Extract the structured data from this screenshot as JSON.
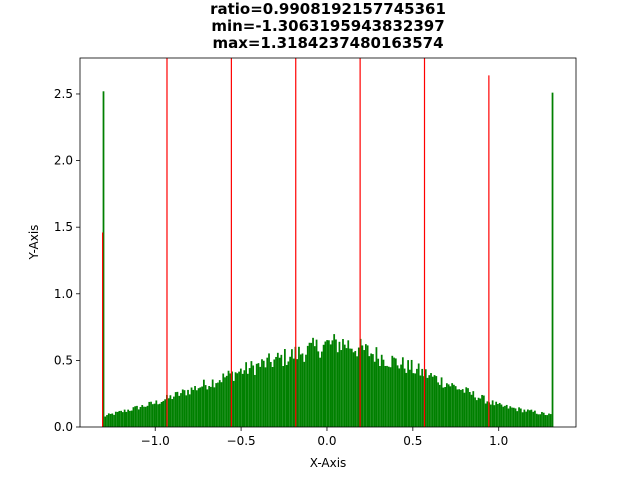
{
  "chart_data": {
    "type": "bar",
    "title": [
      "ratio=0.9908192157745361",
      "min=-1.3063195943832397",
      "max=1.3184237480163574"
    ],
    "xlabel": "X-Axis",
    "ylabel": "Y-Axis",
    "xlim": [
      -1.438,
      1.45
    ],
    "ylim": [
      0,
      2.77
    ],
    "xticks": [
      -1.0,
      -0.5,
      0.0,
      0.5,
      1.0
    ],
    "xtick_labels": [
      "−1.0",
      "−0.5",
      "0.0",
      "0.5",
      "1.0"
    ],
    "yticks": [
      0.0,
      0.5,
      1.0,
      1.5,
      2.0,
      2.5
    ],
    "ytick_labels": [
      "0.0",
      "0.5",
      "1.0",
      "1.5",
      "2.0",
      "2.5"
    ],
    "grid": false,
    "series": [
      {
        "kind": "histogram",
        "color": "#008000",
        "x_range": [
          -1.3063,
          1.3184
        ],
        "bins": 256,
        "edge_spikes": [
          {
            "x": -1.3063,
            "height": 2.52
          },
          {
            "x": 1.3184,
            "height": 2.51
          }
        ],
        "profile": [
          {
            "x": -1.3,
            "y": 0.08
          },
          {
            "x": -1.0,
            "y": 0.18
          },
          {
            "x": -0.5,
            "y": 0.42
          },
          {
            "x": 0.0,
            "y": 0.62
          },
          {
            "x": 0.1,
            "y": 0.63
          },
          {
            "x": 0.5,
            "y": 0.44
          },
          {
            "x": 1.0,
            "y": 0.16
          },
          {
            "x": 1.3,
            "y": 0.09
          }
        ]
      },
      {
        "kind": "vlines",
        "color": "#ff0000",
        "lines": [
          {
            "x": -1.3063,
            "height": 1.46
          },
          {
            "x": -0.9315,
            "height": 2.77
          },
          {
            "x": -0.5566,
            "height": 2.77
          },
          {
            "x": -0.1818,
            "height": 2.77
          },
          {
            "x": 0.193,
            "height": 2.77
          },
          {
            "x": 0.5679,
            "height": 2.77
          },
          {
            "x": 0.9427,
            "height": 2.64
          }
        ]
      }
    ]
  }
}
